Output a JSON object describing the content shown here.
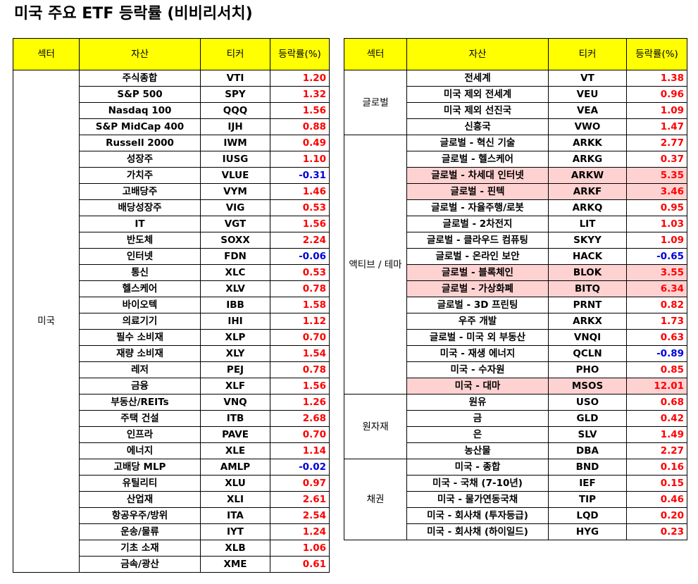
{
  "title": "미국 주요 ETF 등락률 (비비리서치)",
  "colors": {
    "header_bg": "#ffff00",
    "positive": "#ff0000",
    "negative": "#0000dd",
    "highlight": "#ffd2d2"
  },
  "headers": {
    "sector": "섹터",
    "asset": "자산",
    "ticker": "티커",
    "rate": "등락률(%)"
  },
  "left_table": {
    "groups": [
      {
        "sector": "미국",
        "rows": [
          {
            "asset": "주식종합",
            "ticker": "VTI",
            "rate": "1.20"
          },
          {
            "asset": "S&P 500",
            "ticker": "SPY",
            "rate": "1.32"
          },
          {
            "asset": "Nasdaq 100",
            "ticker": "QQQ",
            "rate": "1.56"
          },
          {
            "asset": "S&P MidCap 400",
            "ticker": "IJH",
            "rate": "0.88"
          },
          {
            "asset": "Russell 2000",
            "ticker": "IWM",
            "rate": "0.49"
          },
          {
            "asset": "성장주",
            "ticker": "IUSG",
            "rate": "1.10"
          },
          {
            "asset": "가치주",
            "ticker": "VLUE",
            "rate": "-0.31"
          },
          {
            "asset": "고배당주",
            "ticker": "VYM",
            "rate": "1.46"
          },
          {
            "asset": "배당성장주",
            "ticker": "VIG",
            "rate": "0.53"
          },
          {
            "asset": "IT",
            "ticker": "VGT",
            "rate": "1.56"
          },
          {
            "asset": "반도체",
            "ticker": "SOXX",
            "rate": "2.24"
          },
          {
            "asset": "인터넷",
            "ticker": "FDN",
            "rate": "-0.06"
          },
          {
            "asset": "통신",
            "ticker": "XLC",
            "rate": "0.53"
          },
          {
            "asset": "헬스케어",
            "ticker": "XLV",
            "rate": "0.78"
          },
          {
            "asset": "바이오텍",
            "ticker": "IBB",
            "rate": "1.58"
          },
          {
            "asset": "의료기기",
            "ticker": "IHI",
            "rate": "1.12"
          },
          {
            "asset": "필수 소비재",
            "ticker": "XLP",
            "rate": "0.70"
          },
          {
            "asset": "재량 소비재",
            "ticker": "XLY",
            "rate": "1.54"
          },
          {
            "asset": "레저",
            "ticker": "PEJ",
            "rate": "0.78"
          },
          {
            "asset": "금융",
            "ticker": "XLF",
            "rate": "1.56"
          },
          {
            "asset": "부동산/REITs",
            "ticker": "VNQ",
            "rate": "1.26"
          },
          {
            "asset": "주택 건설",
            "ticker": "ITB",
            "rate": "2.68"
          },
          {
            "asset": "인프라",
            "ticker": "PAVE",
            "rate": "0.70"
          },
          {
            "asset": "에너지",
            "ticker": "XLE",
            "rate": "1.14"
          },
          {
            "asset": "고배당 MLP",
            "ticker": "AMLP",
            "rate": "-0.02"
          },
          {
            "asset": "유틸리티",
            "ticker": "XLU",
            "rate": "0.97"
          },
          {
            "asset": "산업재",
            "ticker": "XLI",
            "rate": "2.61"
          },
          {
            "asset": "항공우주/방위",
            "ticker": "ITA",
            "rate": "2.54"
          },
          {
            "asset": "운송/물류",
            "ticker": "IYT",
            "rate": "1.24"
          },
          {
            "asset": "기초 소재",
            "ticker": "XLB",
            "rate": "1.06"
          },
          {
            "asset": "금속/광산",
            "ticker": "XME",
            "rate": "0.61"
          }
        ]
      }
    ]
  },
  "right_table": {
    "groups": [
      {
        "sector": "글로벌",
        "rows": [
          {
            "asset": "전세계",
            "ticker": "VT",
            "rate": "1.38"
          },
          {
            "asset": "미국 제외 전세계",
            "ticker": "VEU",
            "rate": "0.96"
          },
          {
            "asset": "미국 제외 선진국",
            "ticker": "VEA",
            "rate": "1.09"
          },
          {
            "asset": "신흥국",
            "ticker": "VWO",
            "rate": "1.47"
          }
        ]
      },
      {
        "sector": "액티브 / 테마",
        "rows": [
          {
            "asset": "글로벌 - 혁신 기술",
            "ticker": "ARKK",
            "rate": "2.77"
          },
          {
            "asset": "글로벌 - 헬스케어",
            "ticker": "ARKG",
            "rate": "0.37"
          },
          {
            "asset": "글로벌 - 차세대 인터넷",
            "ticker": "ARKW",
            "rate": "5.35",
            "highlight": true
          },
          {
            "asset": "글로벌 - 핀텍",
            "ticker": "ARKF",
            "rate": "3.46",
            "highlight": true
          },
          {
            "asset": "글로벌 - 자율주행/로봇",
            "ticker": "ARKQ",
            "rate": "0.95"
          },
          {
            "asset": "글로벌 - 2차전지",
            "ticker": "LIT",
            "rate": "1.03"
          },
          {
            "asset": "글로벌 - 클라우드 컴퓨팅",
            "ticker": "SKYY",
            "rate": "1.09"
          },
          {
            "asset": "글로벌 - 온라인 보안",
            "ticker": "HACK",
            "rate": "-0.65"
          },
          {
            "asset": "글로벌 - 블록체인",
            "ticker": "BLOK",
            "rate": "3.55",
            "highlight": true
          },
          {
            "asset": "글로벌 - 가상화폐",
            "ticker": "BITQ",
            "rate": "6.34",
            "highlight": true
          },
          {
            "asset": "글로벌 - 3D 프린팅",
            "ticker": "PRNT",
            "rate": "0.82"
          },
          {
            "asset": "우주 개발",
            "ticker": "ARKX",
            "rate": "1.73"
          },
          {
            "asset": "글로벌 - 미국 외 부동산",
            "ticker": "VNQI",
            "rate": "0.63"
          },
          {
            "asset": "미국 - 재생 에너지",
            "ticker": "QCLN",
            "rate": "-0.89"
          },
          {
            "asset": "미국 - 수자원",
            "ticker": "PHO",
            "rate": "0.85"
          },
          {
            "asset": "미국 - 대마",
            "ticker": "MSOS",
            "rate": "12.01",
            "highlight": true
          }
        ]
      },
      {
        "sector": "원자재",
        "rows": [
          {
            "asset": "원유",
            "ticker": "USO",
            "rate": "0.68"
          },
          {
            "asset": "금",
            "ticker": "GLD",
            "rate": "0.42"
          },
          {
            "asset": "은",
            "ticker": "SLV",
            "rate": "1.49"
          },
          {
            "asset": "농산물",
            "ticker": "DBA",
            "rate": "2.27"
          }
        ]
      },
      {
        "sector": "채권",
        "rows": [
          {
            "asset": "미국 - 종합",
            "ticker": "BND",
            "rate": "0.16"
          },
          {
            "asset": "미국 - 국채 (7-10년)",
            "ticker": "IEF",
            "rate": "0.15"
          },
          {
            "asset": "미국 - 물가연동국채",
            "ticker": "TIP",
            "rate": "0.46"
          },
          {
            "asset": "미국 - 회사채 (투자등급)",
            "ticker": "LQD",
            "rate": "0.20"
          },
          {
            "asset": "미국 - 회사채 (하이일드)",
            "ticker": "HYG",
            "rate": "0.23"
          }
        ]
      }
    ]
  }
}
